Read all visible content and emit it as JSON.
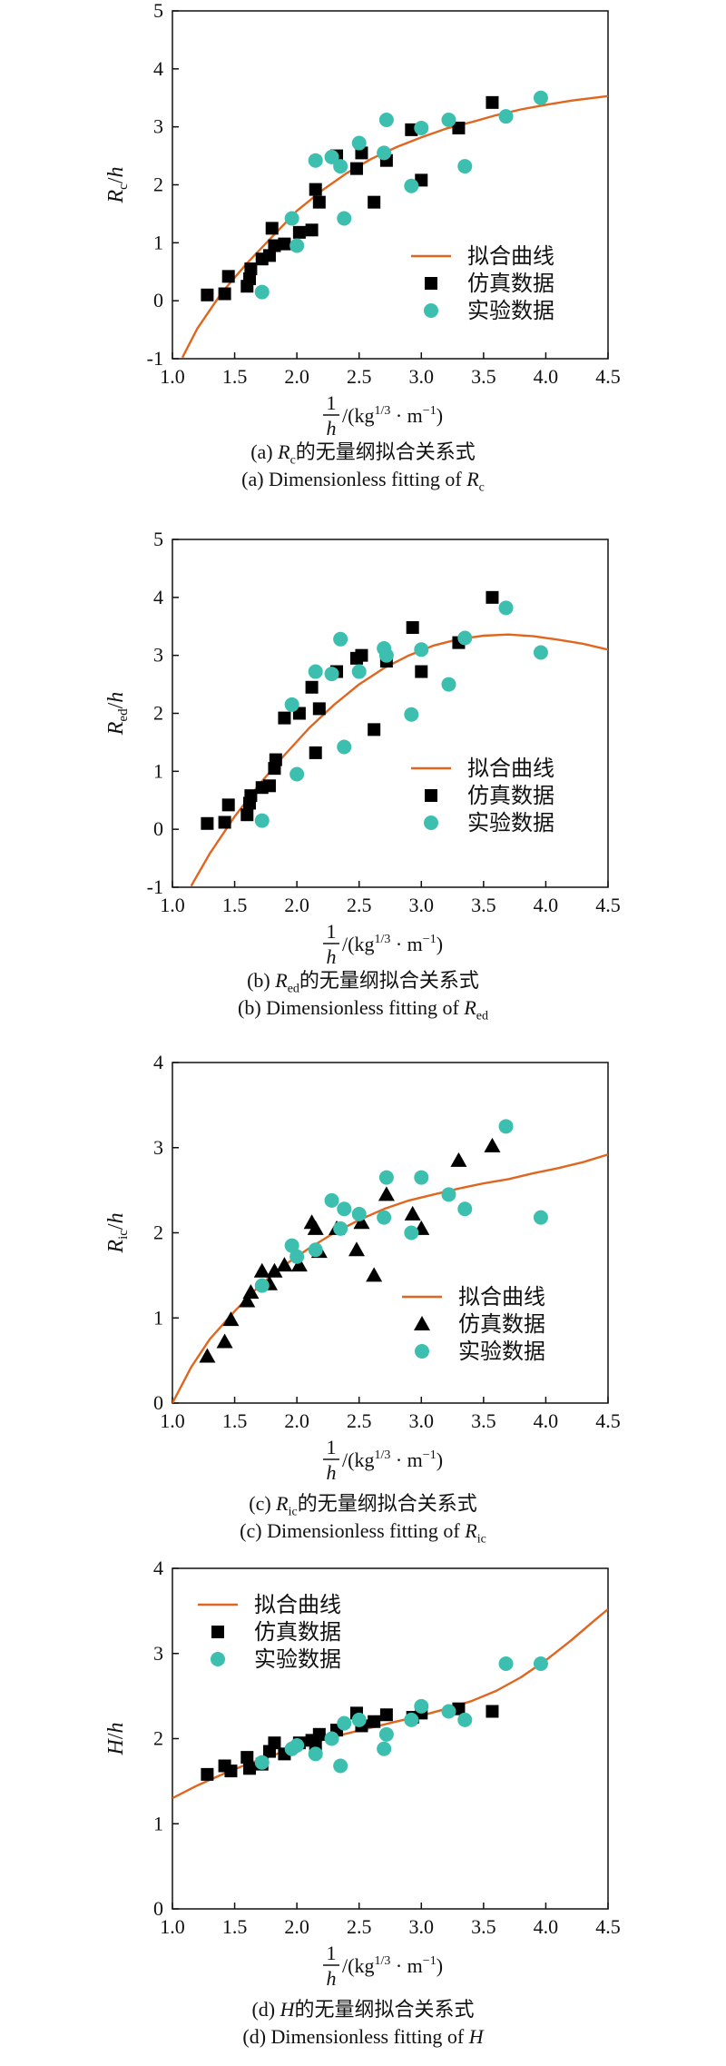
{
  "chart_data": [
    {
      "type": "scatter",
      "ylabel": "Rc/h",
      "y_symbol": "R",
      "y_sub": "c",
      "xlim": [
        1.0,
        4.5
      ],
      "ylim": [
        -1,
        5
      ],
      "x_ticks": [
        "1.0",
        "1.5",
        "2.0",
        "2.5",
        "3.0",
        "3.5",
        "4.0",
        "4.5"
      ],
      "y_ticks": [
        "-1",
        "0",
        "1",
        "2",
        "3",
        "4",
        "5"
      ],
      "legend_position": "center-right",
      "caption_zh_prefix": "(a) ",
      "caption_zh_suffix": "的无量纲拟合关系式",
      "caption_en_prefix": "(a) Dimensionless fitting of ",
      "series": [
        {
          "name": "拟合曲线",
          "kind": "line",
          "color": "#e0661f",
          "x": [
            1.08,
            1.2,
            1.4,
            1.6,
            1.8,
            2.0,
            2.2,
            2.4,
            2.6,
            2.8,
            3.0,
            3.2,
            3.4,
            3.6,
            3.8,
            4.0,
            4.2,
            4.5
          ],
          "y": [
            -0.98,
            -0.48,
            0.15,
            0.65,
            1.1,
            1.55,
            1.9,
            2.2,
            2.45,
            2.65,
            2.82,
            2.97,
            3.08,
            3.2,
            3.3,
            3.38,
            3.45,
            3.53
          ]
        },
        {
          "name": "仿真数据",
          "kind": "square",
          "color": "#000000",
          "x": [
            1.28,
            1.42,
            1.45,
            1.6,
            1.62,
            1.63,
            1.72,
            1.78,
            1.8,
            1.82,
            1.9,
            2.02,
            2.12,
            2.15,
            2.18,
            2.32,
            2.48,
            2.52,
            2.62,
            2.72,
            2.92,
            3.0,
            3.3,
            3.57
          ],
          "y": [
            0.1,
            0.12,
            0.42,
            0.25,
            0.38,
            0.55,
            0.72,
            0.78,
            1.25,
            0.95,
            0.98,
            1.18,
            1.22,
            1.92,
            1.7,
            2.5,
            2.28,
            2.55,
            1.7,
            2.42,
            2.95,
            2.08,
            2.98,
            3.42
          ]
        },
        {
          "name": "实验数据",
          "kind": "circle",
          "color": "#3dbfb0",
          "x": [
            1.72,
            1.96,
            2.0,
            2.15,
            2.28,
            2.35,
            2.38,
            2.5,
            2.7,
            2.72,
            2.92,
            3.0,
            3.22,
            3.35,
            3.68,
            3.96
          ],
          "y": [
            0.15,
            1.42,
            0.95,
            2.42,
            2.48,
            2.32,
            1.42,
            2.72,
            2.55,
            3.12,
            1.98,
            2.98,
            3.12,
            2.32,
            3.18,
            3.5
          ]
        }
      ]
    },
    {
      "type": "scatter",
      "ylabel": "Red/h",
      "y_symbol": "R",
      "y_sub": "ed",
      "xlim": [
        1.0,
        4.5
      ],
      "ylim": [
        -1,
        5
      ],
      "x_ticks": [
        "1.0",
        "1.5",
        "2.0",
        "2.5",
        "3.0",
        "3.5",
        "4.0",
        "4.5"
      ],
      "y_ticks": [
        "-1",
        "0",
        "1",
        "2",
        "3",
        "4",
        "5"
      ],
      "legend_position": "center-right",
      "caption_zh_prefix": "(b) ",
      "caption_zh_suffix": "的无量纲拟合关系式",
      "caption_en_prefix": "(b) Dimensionless fitting of ",
      "series": [
        {
          "name": "拟合曲线",
          "kind": "line",
          "color": "#e0661f",
          "x": [
            1.15,
            1.3,
            1.5,
            1.7,
            1.9,
            2.1,
            2.3,
            2.5,
            2.7,
            2.9,
            3.1,
            3.3,
            3.5,
            3.7,
            3.9,
            4.1,
            4.3,
            4.5
          ],
          "y": [
            -0.98,
            -0.42,
            0.22,
            0.78,
            1.28,
            1.75,
            2.15,
            2.5,
            2.78,
            3.0,
            3.17,
            3.28,
            3.34,
            3.36,
            3.33,
            3.27,
            3.2,
            3.1
          ]
        },
        {
          "name": "仿真数据",
          "kind": "square",
          "color": "#000000",
          "x": [
            1.28,
            1.42,
            1.45,
            1.6,
            1.62,
            1.63,
            1.72,
            1.78,
            1.82,
            1.83,
            1.9,
            2.02,
            2.12,
            2.15,
            2.18,
            2.32,
            2.48,
            2.52,
            2.62,
            2.72,
            2.93,
            3.0,
            3.3,
            3.57
          ],
          "y": [
            0.1,
            0.12,
            0.42,
            0.25,
            0.45,
            0.58,
            0.72,
            0.75,
            1.05,
            1.2,
            1.92,
            2.0,
            2.45,
            1.32,
            2.08,
            2.72,
            2.95,
            3.0,
            1.72,
            2.9,
            3.48,
            2.72,
            3.22,
            4.0
          ]
        },
        {
          "name": "实验数据",
          "kind": "circle",
          "color": "#3dbfb0",
          "x": [
            1.72,
            1.96,
            2.0,
            2.15,
            2.28,
            2.35,
            2.38,
            2.5,
            2.7,
            2.72,
            2.92,
            3.0,
            3.22,
            3.35,
            3.68,
            3.96
          ],
          "y": [
            0.15,
            2.15,
            0.95,
            2.72,
            2.68,
            3.28,
            1.42,
            2.72,
            3.12,
            3.0,
            1.98,
            3.1,
            2.5,
            3.3,
            3.82,
            3.05
          ]
        }
      ]
    },
    {
      "type": "scatter",
      "ylabel": "Ric/h",
      "y_symbol": "R",
      "y_sub": "ic",
      "xlim": [
        1.0,
        4.5
      ],
      "ylim": [
        0,
        4
      ],
      "x_ticks": [
        "1.0",
        "1.5",
        "2.0",
        "2.5",
        "3.0",
        "3.5",
        "4.0",
        "4.5"
      ],
      "y_ticks": [
        "0",
        "1",
        "2",
        "3",
        "4"
      ],
      "legend_position": "center-right",
      "caption_zh_prefix": "(c) ",
      "caption_zh_suffix": "的无量纲拟合关系式",
      "caption_en_prefix": "(c) Dimensionless fitting of ",
      "series": [
        {
          "name": "拟合曲线",
          "kind": "line",
          "color": "#e0661f",
          "x": [
            1.0,
            1.15,
            1.3,
            1.5,
            1.7,
            1.9,
            2.1,
            2.3,
            2.5,
            2.7,
            2.9,
            3.1,
            3.3,
            3.5,
            3.7,
            3.9,
            4.1,
            4.3,
            4.5
          ],
          "y": [
            0.0,
            0.42,
            0.75,
            1.08,
            1.38,
            1.62,
            1.82,
            2.0,
            2.15,
            2.28,
            2.38,
            2.45,
            2.52,
            2.58,
            2.63,
            2.7,
            2.76,
            2.83,
            2.92
          ]
        },
        {
          "name": "仿真数据",
          "kind": "triangle",
          "color": "#000000",
          "x": [
            1.28,
            1.42,
            1.47,
            1.6,
            1.63,
            1.72,
            1.78,
            1.82,
            1.9,
            2.02,
            2.12,
            2.15,
            2.18,
            2.32,
            2.48,
            2.52,
            2.62,
            2.72,
            2.93,
            3.0,
            3.3,
            3.57
          ],
          "y": [
            0.55,
            0.72,
            0.98,
            1.2,
            1.3,
            1.55,
            1.4,
            1.55,
            1.62,
            1.62,
            2.12,
            2.05,
            1.78,
            2.05,
            1.8,
            2.12,
            1.5,
            2.45,
            2.22,
            2.05,
            2.85,
            3.02
          ]
        },
        {
          "name": "实验数据",
          "kind": "circle",
          "color": "#3dbfb0",
          "x": [
            1.72,
            1.96,
            2.0,
            2.15,
            2.28,
            2.35,
            2.38,
            2.5,
            2.7,
            2.72,
            2.92,
            3.0,
            3.22,
            3.35,
            3.68,
            3.96
          ],
          "y": [
            1.38,
            1.85,
            1.72,
            1.8,
            2.38,
            2.05,
            2.28,
            2.22,
            2.18,
            2.65,
            2.0,
            2.65,
            2.45,
            2.28,
            3.25,
            2.18
          ]
        }
      ]
    },
    {
      "type": "scatter",
      "ylabel": "H/h",
      "y_symbol": "H",
      "y_sub": "",
      "xlim": [
        1.0,
        4.5
      ],
      "ylim": [
        0,
        4
      ],
      "x_ticks": [
        "1.0",
        "1.5",
        "2.0",
        "2.5",
        "3.0",
        "3.5",
        "4.0",
        "4.5"
      ],
      "y_ticks": [
        "0",
        "1",
        "2",
        "3",
        "4"
      ],
      "legend_position": "top-left",
      "caption_zh_prefix": "(d) ",
      "caption_zh_suffix": "的无量纲拟合关系式",
      "caption_en_prefix": "(d) Dimensionless fitting of ",
      "series": [
        {
          "name": "拟合曲线",
          "kind": "line",
          "color": "#e0661f",
          "x": [
            1.0,
            1.2,
            1.4,
            1.6,
            1.8,
            2.0,
            2.2,
            2.4,
            2.6,
            2.8,
            3.0,
            3.2,
            3.4,
            3.6,
            3.8,
            4.0,
            4.2,
            4.4,
            4.5
          ],
          "y": [
            1.3,
            1.45,
            1.58,
            1.7,
            1.8,
            1.9,
            1.98,
            2.06,
            2.13,
            2.2,
            2.27,
            2.35,
            2.44,
            2.56,
            2.72,
            2.92,
            3.15,
            3.4,
            3.52
          ]
        },
        {
          "name": "仿真数据",
          "kind": "square",
          "color": "#000000",
          "x": [
            1.28,
            1.42,
            1.47,
            1.6,
            1.62,
            1.72,
            1.78,
            1.82,
            1.9,
            2.02,
            2.12,
            2.15,
            2.18,
            2.32,
            2.48,
            2.52,
            2.62,
            2.72,
            2.93,
            3.0,
            3.3,
            3.57
          ],
          "y": [
            1.58,
            1.68,
            1.62,
            1.78,
            1.65,
            1.7,
            1.85,
            1.95,
            1.82,
            1.95,
            1.98,
            1.92,
            2.05,
            2.1,
            2.3,
            2.15,
            2.2,
            2.28,
            2.25,
            2.3,
            2.35,
            2.32
          ]
        },
        {
          "name": "实验数据",
          "kind": "circle",
          "color": "#3dbfb0",
          "x": [
            1.72,
            1.96,
            2.0,
            2.15,
            2.28,
            2.35,
            2.38,
            2.5,
            2.7,
            2.72,
            2.92,
            3.0,
            3.22,
            3.35,
            3.68,
            3.96
          ],
          "y": [
            1.72,
            1.88,
            1.92,
            1.82,
            2.0,
            1.68,
            2.18,
            2.22,
            1.88,
            2.05,
            2.22,
            2.38,
            2.32,
            2.22,
            2.88,
            2.88
          ]
        }
      ]
    }
  ],
  "x_axis_label": "1/h/(kg1/3 · m−1)",
  "x_label_num": "1",
  "x_label_den": "h",
  "x_label_unit_a": "/(kg",
  "x_label_exp": "1/3",
  "x_label_unit_b": " · m",
  "x_label_exp2": "−1",
  "x_label_unit_c": ")",
  "y_label_slash": "/h"
}
